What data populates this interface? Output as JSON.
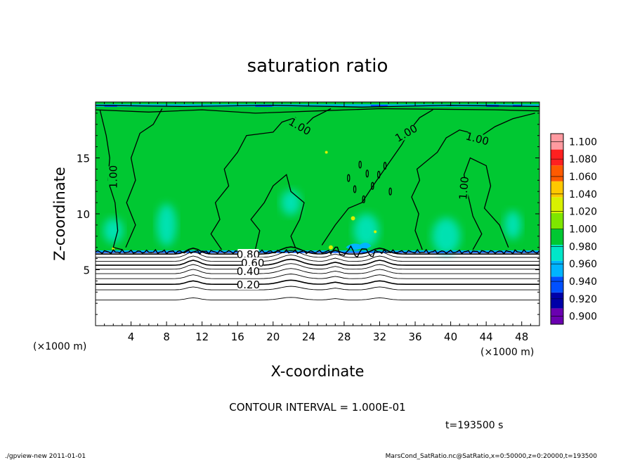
{
  "chart_data": {
    "type": "heatmap",
    "title": "saturation ratio",
    "xlabel": "X-coordinate",
    "ylabel": "Z-coordinate",
    "x_unit": "(×1000 m)",
    "y_unit": "(×1000 m)",
    "xlim": [
      0,
      50
    ],
    "ylim": [
      0,
      20
    ],
    "x_ticks": [
      4,
      8,
      12,
      16,
      20,
      24,
      28,
      32,
      36,
      40,
      44,
      48
    ],
    "y_ticks": [
      5,
      10,
      15
    ],
    "contour_interval_text": "CONTOUR INTERVAL = 1.000E-01",
    "time_text": "t=193500 s",
    "footer_left": "./gpview-new  2011-01-01",
    "footer_right": "MarsCond_SatRatio.nc@SatRatio,x=0:50000,z=0:20000,t=193500",
    "colorbar": {
      "levels": [
        "0.900",
        "0.920",
        "0.940",
        "0.960",
        "0.980",
        "1.000",
        "1.020",
        "1.040",
        "1.060",
        "1.080",
        "1.100"
      ],
      "colors": [
        "#6a00b0",
        "#0000a8",
        "#0050ff",
        "#00b4ff",
        "#00e6c8",
        "#00c832",
        "#7ee600",
        "#d8f000",
        "#ffc800",
        "#ff5a00",
        "#ff2020",
        "#ff9aa0"
      ]
    },
    "contour_labels": [
      {
        "text": "1.00",
        "x": 2.0,
        "z": 13.3,
        "rotate": -90
      },
      {
        "text": "1.00",
        "x": 23.0,
        "z": 17.8,
        "rotate": 30
      },
      {
        "text": "1.00",
        "x": 35.0,
        "z": 17.2,
        "rotate": -30
      },
      {
        "text": "1.00",
        "x": 43.0,
        "z": 16.7,
        "rotate": 15
      },
      {
        "text": "1.00",
        "x": 41.5,
        "z": 12.3,
        "rotate": -85
      },
      {
        "text": "0.80",
        "x": 17.2,
        "z": 6.35,
        "rotate": 0
      },
      {
        "text": "0.60",
        "x": 17.7,
        "z": 5.6,
        "rotate": 0
      },
      {
        "text": "0.40",
        "x": 17.2,
        "z": 4.85,
        "rotate": 0
      },
      {
        "text": "0.20",
        "x": 17.2,
        "z": 3.65,
        "rotate": 0
      }
    ],
    "contour_levels_below_cloud": [
      0.2,
      0.3,
      0.4,
      0.5,
      0.6,
      0.7,
      0.8,
      0.9
    ],
    "cloud_base_z": 6.6,
    "dominant_value": 0.99
  }
}
